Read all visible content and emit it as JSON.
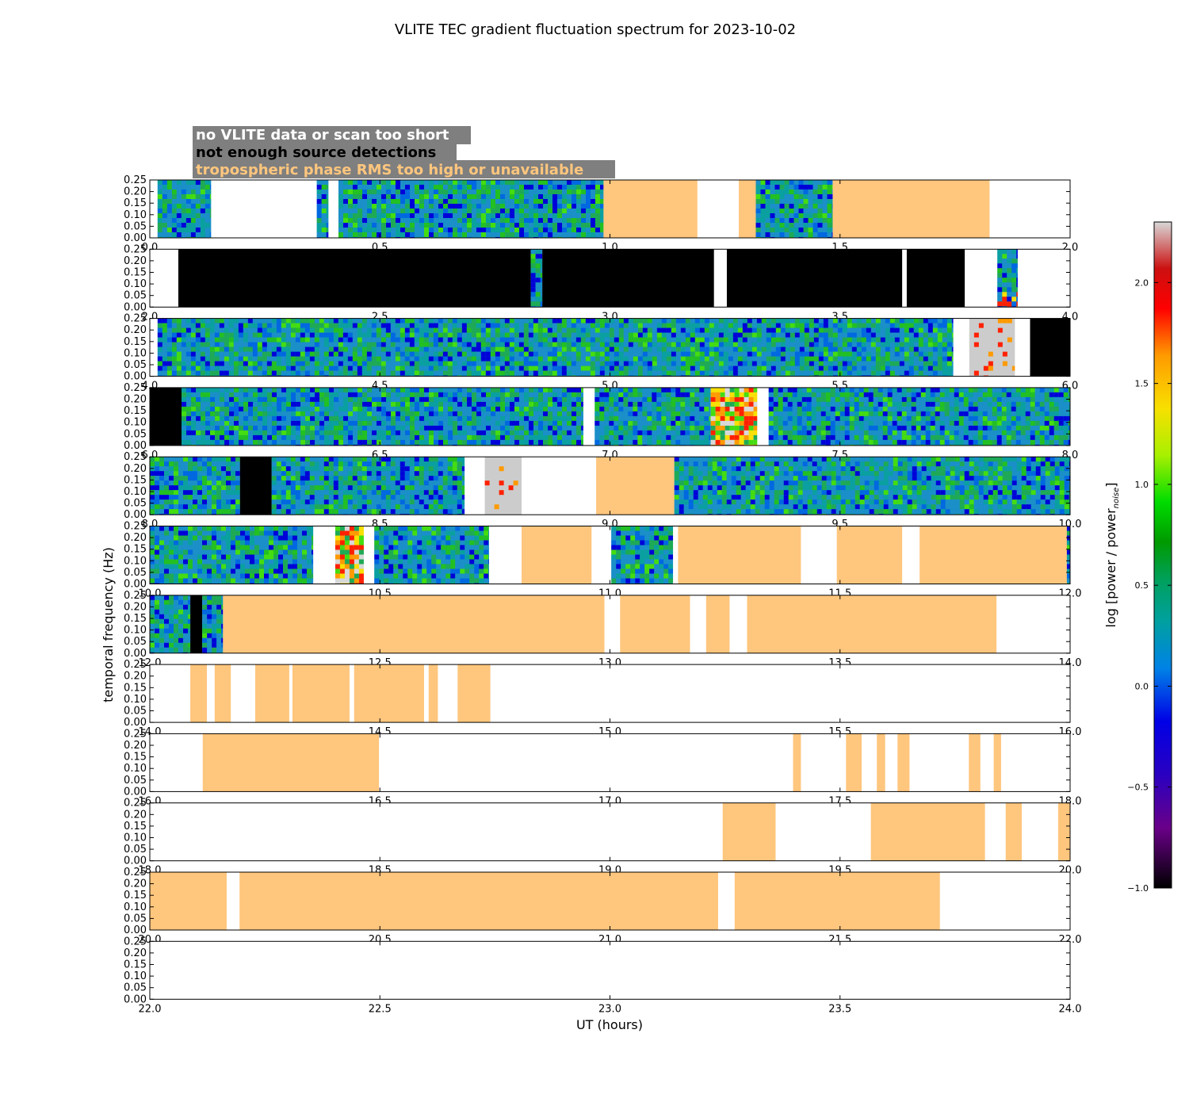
{
  "colors": {
    "tropospheric": "#ffc67d",
    "no_data_box": "#7f7f7f",
    "no_detections": "#000000",
    "blue_bg": "#1b8fc8",
    "green_bg": "#1eaa55"
  },
  "legend_labels": {
    "no_data": "no VLITE data or scan too short",
    "no_detections": "not enough source detections",
    "tropospheric": "tropospheric phase RMS too high or unavailable"
  },
  "chart_data": {
    "type": "heatmap",
    "title": "VLITE TEC gradient fluctuation spectrum for 2023-10-02",
    "xlabel": "UT (hours)",
    "ylabel": "temporal frequency (Hz)",
    "colorbar_label": "log [power / power_noise]",
    "ylim": [
      0,
      0.25
    ],
    "yticks": [
      "0.00",
      "0.05",
      "0.10",
      "0.15",
      "0.20",
      "0.25"
    ],
    "colorbar_range": [
      -1.0,
      2.3
    ],
    "colorbar_ticks": [
      "−1.0",
      "−0.5",
      "0.0",
      "0.5",
      "1.0",
      "1.5",
      "2.0"
    ],
    "panels": [
      {
        "xlim": [
          0.0,
          2.0
        ],
        "xticks": [
          "0.0",
          "0.5",
          "1.0",
          "1.5",
          "2.0"
        ],
        "blocks": [
          {
            "t0": 0.017,
            "t1": 0.133,
            "type": "spec"
          },
          {
            "t0": 0.363,
            "t1": 0.388,
            "type": "spec"
          },
          {
            "t0": 0.41,
            "t1": 0.986,
            "type": "spec"
          },
          {
            "t0": 0.986,
            "t1": 1.19,
            "type": "tropo"
          },
          {
            "t0": 1.28,
            "t1": 1.317,
            "type": "tropo"
          },
          {
            "t0": 1.317,
            "t1": 1.484,
            "type": "spec"
          },
          {
            "t0": 1.484,
            "t1": 1.825,
            "type": "tropo"
          }
        ]
      },
      {
        "xlim": [
          2.0,
          4.0
        ],
        "xticks": [
          "2.0",
          "2.5",
          "3.0",
          "3.5",
          "4.0"
        ],
        "blocks": [
          {
            "t0": 2.062,
            "t1": 2.828,
            "type": "nodet"
          },
          {
            "t0": 2.828,
            "t1": 2.853,
            "type": "spec"
          },
          {
            "t0": 2.853,
            "t1": 3.226,
            "type": "nodet"
          },
          {
            "t0": 3.254,
            "t1": 3.635,
            "type": "nodet"
          },
          {
            "t0": 3.645,
            "t1": 3.771,
            "type": "nodet"
          },
          {
            "t0": 3.842,
            "t1": 3.886,
            "type": "spec",
            "hot": 0.3
          }
        ]
      },
      {
        "xlim": [
          4.0,
          6.0
        ],
        "xticks": [
          "4.0",
          "4.5",
          "5.0",
          "5.5",
          "6.0"
        ],
        "blocks": [
          {
            "t0": 4.017,
            "t1": 5.746,
            "type": "spec"
          },
          {
            "t0": 5.781,
            "t1": 5.88,
            "type": "gray"
          },
          {
            "t0": 5.913,
            "t1": 6.0,
            "type": "nodet"
          }
        ]
      },
      {
        "xlim": [
          6.0,
          8.0
        ],
        "xticks": [
          "6.0",
          "6.5",
          "7.0",
          "7.5",
          "8.0"
        ],
        "blocks": [
          {
            "t0": 6.0,
            "t1": 6.069,
            "type": "nodet"
          },
          {
            "t0": 6.069,
            "t1": 6.942,
            "type": "spec"
          },
          {
            "t0": 6.967,
            "t1": 7.219,
            "type": "spec"
          },
          {
            "t0": 7.219,
            "t1": 7.32,
            "type": "hot"
          },
          {
            "t0": 7.345,
            "t1": 8.0,
            "type": "spec"
          }
        ]
      },
      {
        "xlim": [
          8.0,
          10.0
        ],
        "xticks": [
          "8.0",
          "8.5",
          "9.0",
          "9.5",
          "10.0"
        ],
        "blocks": [
          {
            "t0": 8.0,
            "t1": 8.196,
            "type": "spec"
          },
          {
            "t0": 8.196,
            "t1": 8.265,
            "type": "nodet"
          },
          {
            "t0": 8.265,
            "t1": 8.684,
            "type": "spec"
          },
          {
            "t0": 8.728,
            "t1": 8.808,
            "type": "gray"
          },
          {
            "t0": 8.97,
            "t1": 9.14,
            "type": "tropo"
          },
          {
            "t0": 9.14,
            "t1": 10.0,
            "type": "spec"
          }
        ]
      },
      {
        "xlim": [
          10.0,
          12.0
        ],
        "xticks": [
          "10.0",
          "10.5",
          "11.0",
          "11.5",
          "12.0"
        ],
        "blocks": [
          {
            "t0": 10.0,
            "t1": 10.355,
            "type": "spec"
          },
          {
            "t0": 10.403,
            "t1": 10.465,
            "type": "hot"
          },
          {
            "t0": 10.488,
            "t1": 10.737,
            "type": "spec"
          },
          {
            "t0": 10.808,
            "t1": 10.96,
            "type": "tropo"
          },
          {
            "t0": 11.003,
            "t1": 11.137,
            "type": "spec"
          },
          {
            "t0": 11.148,
            "t1": 11.415,
            "type": "tropo"
          },
          {
            "t0": 11.493,
            "t1": 11.635,
            "type": "tropo"
          },
          {
            "t0": 11.673,
            "t1": 11.993,
            "type": "tropo"
          },
          {
            "t0": 11.993,
            "t1": 12.0,
            "type": "spec"
          }
        ]
      },
      {
        "xlim": [
          12.0,
          14.0
        ],
        "xticks": [
          "12.0",
          "12.5",
          "13.0",
          "13.5",
          "14.0"
        ],
        "blocks": [
          {
            "t0": 12.0,
            "t1": 12.088,
            "type": "spec"
          },
          {
            "t0": 12.088,
            "t1": 12.114,
            "type": "nodet"
          },
          {
            "t0": 12.114,
            "t1": 12.159,
            "type": "spec"
          },
          {
            "t0": 12.159,
            "t1": 12.988,
            "type": "tropo"
          },
          {
            "t0": 13.022,
            "t1": 13.174,
            "type": "tropo"
          },
          {
            "t0": 13.209,
            "t1": 13.26,
            "type": "tropo"
          },
          {
            "t0": 13.298,
            "t1": 13.84,
            "type": "tropo"
          }
        ]
      },
      {
        "xlim": [
          14.0,
          16.0
        ],
        "xticks": [
          "14.0",
          "14.5",
          "15.0",
          "15.5",
          "16.0"
        ],
        "blocks": [
          {
            "t0": 14.088,
            "t1": 14.124,
            "type": "tropo"
          },
          {
            "t0": 14.141,
            "t1": 14.176,
            "type": "tropo"
          },
          {
            "t0": 14.229,
            "t1": 14.303,
            "type": "tropo"
          },
          {
            "t0": 14.31,
            "t1": 14.434,
            "type": "tropo"
          },
          {
            "t0": 14.444,
            "t1": 14.596,
            "type": "tropo"
          },
          {
            "t0": 14.606,
            "t1": 14.626,
            "type": "tropo"
          },
          {
            "t0": 14.669,
            "t1": 14.74,
            "type": "tropo"
          }
        ]
      },
      {
        "xlim": [
          16.0,
          18.0
        ],
        "xticks": [
          "16.0",
          "16.5",
          "17.0",
          "17.5",
          "18.0"
        ],
        "blocks": [
          {
            "t0": 16.115,
            "t1": 16.498,
            "type": "tropo"
          },
          {
            "t0": 17.398,
            "t1": 17.415,
            "type": "tropo"
          },
          {
            "t0": 17.513,
            "t1": 17.547,
            "type": "tropo"
          },
          {
            "t0": 17.58,
            "t1": 17.598,
            "type": "tropo"
          },
          {
            "t0": 17.625,
            "t1": 17.651,
            "type": "tropo"
          },
          {
            "t0": 17.78,
            "t1": 17.805,
            "type": "tropo"
          },
          {
            "t0": 17.834,
            "t1": 17.85,
            "type": "tropo"
          }
        ]
      },
      {
        "xlim": [
          18.0,
          20.0
        ],
        "xticks": [
          "18.0",
          "18.5",
          "19.0",
          "19.5",
          "20.0"
        ],
        "blocks": [
          {
            "t0": 19.245,
            "t1": 19.36,
            "type": "tropo"
          },
          {
            "t0": 19.567,
            "t1": 19.815,
            "type": "tropo"
          },
          {
            "t0": 19.86,
            "t1": 19.895,
            "type": "tropo"
          },
          {
            "t0": 19.974,
            "t1": 20.0,
            "type": "tropo"
          }
        ]
      },
      {
        "xlim": [
          20.0,
          22.0
        ],
        "xticks": [
          "20.0",
          "20.5",
          "21.0",
          "21.5",
          "22.0"
        ],
        "blocks": [
          {
            "t0": 20.0,
            "t1": 20.167,
            "type": "tropo"
          },
          {
            "t0": 20.195,
            "t1": 21.235,
            "type": "tropo"
          },
          {
            "t0": 21.271,
            "t1": 21.717,
            "type": "tropo"
          }
        ]
      },
      {
        "xlim": [
          22.0,
          24.0
        ],
        "xticks": [
          "22.0",
          "22.5",
          "23.0",
          "23.5",
          "24.0"
        ],
        "blocks": []
      }
    ]
  }
}
